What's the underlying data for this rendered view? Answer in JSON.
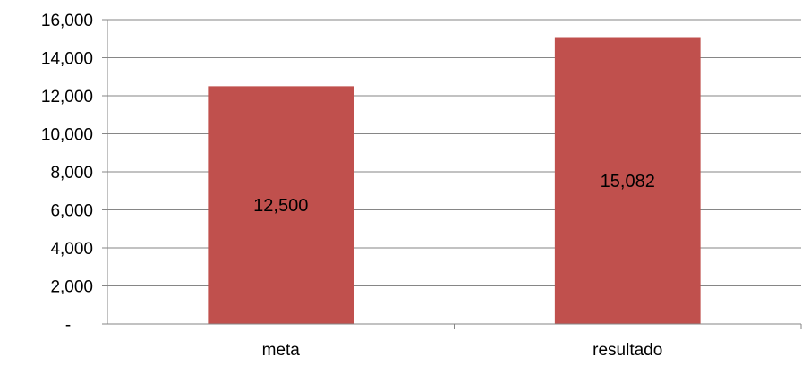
{
  "chart_data": {
    "type": "bar",
    "categories": [
      "meta",
      "resultado"
    ],
    "values": [
      12500,
      15082
    ],
    "value_labels": [
      "12,500",
      "15,082"
    ],
    "ylim": [
      0,
      16000
    ],
    "yticks": [
      0,
      2000,
      4000,
      6000,
      8000,
      10000,
      12000,
      14000,
      16000
    ],
    "ytick_labels": [
      "-",
      "2,000",
      "4,000",
      "6,000",
      "8,000",
      "10,000",
      "12,000",
      "14,000",
      "16,000"
    ],
    "grid": true,
    "bar_color": "#c0504d",
    "grid_color": "#868686"
  }
}
